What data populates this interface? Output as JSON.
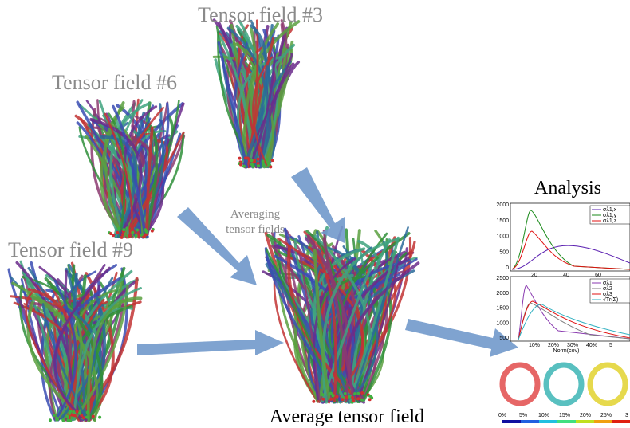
{
  "tensor_fields": [
    {
      "label": "Tensor field #3"
    },
    {
      "label": "Tensor field #6"
    },
    {
      "label": "Tensor field #9"
    }
  ],
  "averaging_note": [
    "Averaging",
    "tensor fields"
  ],
  "average_label": "Average tensor field",
  "analysis": {
    "title": "Analysis",
    "plot1": {
      "yticks": [
        "2000",
        "1500",
        "1000",
        "500",
        "0"
      ],
      "xticks": [
        "20",
        "40",
        "60"
      ],
      "legend": [
        "σλ1,x",
        "σλ1,y",
        "σλ1,z"
      ]
    },
    "plot2": {
      "yticks": [
        "2500",
        "2000",
        "1500",
        "1000",
        "500"
      ],
      "xticks": [
        "10%",
        "20%",
        "30%",
        "40%",
        "5"
      ],
      "xlabel": "Norm(cov)",
      "legend": [
        "σλ1",
        "σλ2",
        "σλ3",
        "√Tr(Σ)"
      ]
    },
    "colorbar": [
      "0%",
      "5%",
      "10%",
      "15%",
      "20%",
      "25%",
      "3"
    ]
  }
}
